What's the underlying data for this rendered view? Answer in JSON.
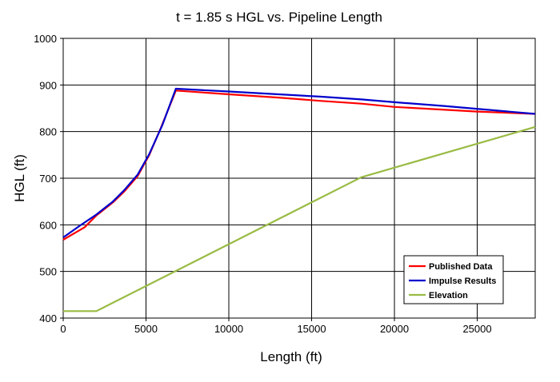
{
  "chart_data": {
    "type": "line",
    "title": "t = 1.85 s HGL vs. Pipeline Length",
    "xlabel": "Length (ft)",
    "ylabel": "HGL (ft)",
    "xlim": [
      0,
      28500
    ],
    "ylim": [
      400,
      1000
    ],
    "xticks": [
      0,
      5000,
      10000,
      15000,
      20000,
      25000
    ],
    "yticks": [
      400,
      500,
      600,
      700,
      800,
      900,
      1000
    ],
    "grid": true,
    "legend_position": "bottom-right",
    "series": [
      {
        "name": "Published Data",
        "color": "#ff0000",
        "x": [
          0,
          1300,
          2000,
          3000,
          3700,
          4500,
          5200,
          5900,
          6800,
          10000,
          13000,
          15500,
          18000,
          20000,
          25000,
          28500
        ],
        "y": [
          568,
          595,
          620,
          648,
          672,
          705,
          750,
          808,
          888,
          880,
          873,
          866,
          860,
          853,
          843,
          838
        ]
      },
      {
        "name": "Impulse Results",
        "color": "#0000cc",
        "x": [
          0,
          1000,
          2000,
          3000,
          3700,
          4500,
          5200,
          6000,
          6800,
          10000,
          13000,
          15500,
          18000,
          20000,
          23000,
          28500
        ],
        "y": [
          573,
          598,
          622,
          650,
          675,
          708,
          752,
          815,
          892,
          886,
          880,
          875,
          869,
          863,
          855,
          838
        ]
      },
      {
        "name": "Elevation",
        "color": "#99bb44",
        "x": [
          0,
          2000,
          18000,
          28500
        ],
        "y": [
          415,
          415,
          702,
          810
        ]
      }
    ]
  }
}
